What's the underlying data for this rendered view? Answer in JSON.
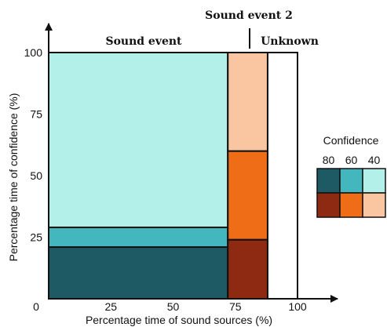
{
  "chart_data": {
    "type": "mosaic",
    "xlabel": "Percentage time of sound sources (%)",
    "ylabel": "Percentage time of confidence (%)",
    "xlim": [
      0,
      100
    ],
    "ylim": [
      0,
      100
    ],
    "x_ticks": [
      "0",
      "25",
      "50",
      "75",
      "100"
    ],
    "y_ticks": [
      "25",
      "50",
      "75",
      "100"
    ],
    "x_tick_values": [
      0,
      25,
      50,
      75,
      100
    ],
    "y_tick_values": [
      25,
      50,
      75,
      100
    ],
    "columns": [
      {
        "label": "Sound event",
        "x_start": 0,
        "x_end": 72,
        "segments": [
          {
            "confidence": "80",
            "y_start": 0,
            "y_end": 21,
            "color": "#1d5a63"
          },
          {
            "confidence": "60",
            "y_start": 21,
            "y_end": 29,
            "color": "#43b6be"
          },
          {
            "confidence": "40",
            "y_start": 29,
            "y_end": 100,
            "color": "#b4f0ea"
          }
        ]
      },
      {
        "label": "Sound event 2",
        "x_start": 72,
        "x_end": 88,
        "segments": [
          {
            "confidence": "80",
            "y_start": 0,
            "y_end": 24,
            "color": "#8e2a12"
          },
          {
            "confidence": "60",
            "y_start": 24,
            "y_end": 60,
            "color": "#ef6d16"
          },
          {
            "confidence": "40",
            "y_start": 60,
            "y_end": 100,
            "color": "#f9c6a1"
          }
        ]
      },
      {
        "label": "Unknown",
        "x_start": 88,
        "x_end": 100,
        "segments": [
          {
            "confidence": "",
            "y_start": 0,
            "y_end": 100,
            "color": "#ffffff"
          }
        ]
      }
    ],
    "legend": {
      "title": "Confidence",
      "labels": [
        "80",
        "60",
        "40"
      ],
      "rows": [
        [
          "#1d5a63",
          "#43b6be",
          "#b4f0ea"
        ],
        [
          "#8e2a12",
          "#ef6d16",
          "#f9c6a1"
        ]
      ]
    }
  }
}
